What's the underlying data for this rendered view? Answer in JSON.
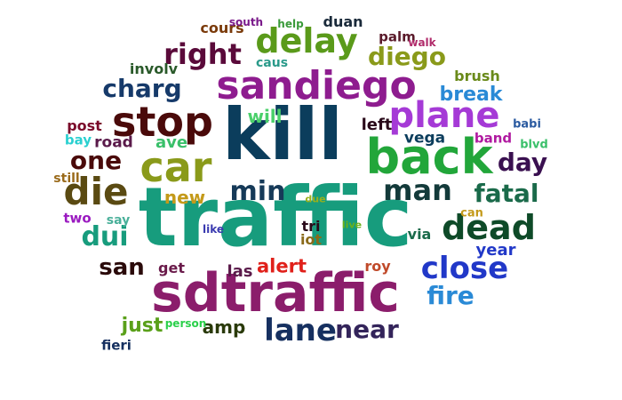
{
  "words": [
    {
      "text": "traffic",
      "color": "#179c7d"
    },
    {
      "text": "kill",
      "color": "#0b3d5c"
    },
    {
      "text": "sdtraffic",
      "color": "#8b1d6b"
    },
    {
      "text": "back",
      "color": "#22a63a"
    },
    {
      "text": "sandiego",
      "color": "#8e1c8f"
    },
    {
      "text": "stop",
      "color": "#4a0a0a"
    },
    {
      "text": "car",
      "color": "#8a9a1a"
    },
    {
      "text": "plane",
      "color": "#a53ad6"
    },
    {
      "text": "die",
      "color": "#5a4a12"
    },
    {
      "text": "delay",
      "color": "#5a9a1a"
    },
    {
      "text": "dead",
      "color": "#0e4a28"
    },
    {
      "text": "close",
      "color": "#2138c8"
    },
    {
      "text": "lane",
      "color": "#163060"
    },
    {
      "text": "man",
      "color": "#133a3a"
    },
    {
      "text": "right",
      "color": "#5a0a3a"
    },
    {
      "text": "min",
      "color": "#163a58"
    },
    {
      "text": "fatal",
      "color": "#1a6a4a"
    },
    {
      "text": "diego",
      "color": "#8a9a1a"
    },
    {
      "text": "one",
      "color": "#4a0a0a"
    },
    {
      "text": "day",
      "color": "#3a1050"
    },
    {
      "text": "near",
      "color": "#33245a"
    },
    {
      "text": "dui",
      "color": "#179c7d"
    },
    {
      "text": "fire",
      "color": "#2a8ad6"
    },
    {
      "text": "charg",
      "color": "#163a6a"
    },
    {
      "text": "san",
      "color": "#2a0a0a"
    },
    {
      "text": "break",
      "color": "#2a8ad6"
    },
    {
      "text": "alert",
      "color": "#e0201a"
    },
    {
      "text": "new",
      "color": "#c49a1a"
    },
    {
      "text": "just",
      "color": "#5aa01a"
    },
    {
      "text": "amp",
      "color": "#2a3a0a"
    },
    {
      "text": "year",
      "color": "#2138c8"
    },
    {
      "text": "will",
      "color": "#4ad06a"
    },
    {
      "text": "ave",
      "color": "#3ac06a"
    },
    {
      "text": "left",
      "color": "#2a0a1a"
    },
    {
      "text": "las",
      "color": "#5a1a4a"
    },
    {
      "text": "vega",
      "color": "#0b3d5c"
    },
    {
      "text": "road",
      "color": "#5a1a4a"
    },
    {
      "text": "involv",
      "color": "#2a5a2a"
    },
    {
      "text": "brush",
      "color": "#6a8a1a"
    },
    {
      "text": "cours",
      "color": "#7a3a0a"
    },
    {
      "text": "post",
      "color": "#7a0a2a"
    },
    {
      "text": "band",
      "color": "#b01aa0"
    },
    {
      "text": "via",
      "color": "#1a6a4a"
    },
    {
      "text": "get",
      "color": "#6a1a4a"
    },
    {
      "text": "roy",
      "color": "#c04a2a"
    },
    {
      "text": "tri",
      "color": "#2a0a1a"
    },
    {
      "text": "iot",
      "color": "#8a6a1a"
    },
    {
      "text": "palm",
      "color": "#5a1a2a"
    },
    {
      "text": "duan",
      "color": "#1a2a3a"
    },
    {
      "text": "caus",
      "color": "#2a9a8a"
    },
    {
      "text": "bay",
      "color": "#2ad0d0"
    },
    {
      "text": "say",
      "color": "#4ab09a"
    },
    {
      "text": "two",
      "color": "#9a1ac0"
    },
    {
      "text": "still",
      "color": "#9a6a1a"
    },
    {
      "text": "can",
      "color": "#c49a1a"
    },
    {
      "text": "babi",
      "color": "#2a5aa0"
    },
    {
      "text": "blvd",
      "color": "#3ac06a"
    },
    {
      "text": "fieri",
      "color": "#163060"
    },
    {
      "text": "south",
      "color": "#7a1a8a"
    },
    {
      "text": "help",
      "color": "#3a9a3a"
    },
    {
      "text": "walk",
      "color": "#b02a6a"
    },
    {
      "text": "like",
      "color": "#3a3ab0"
    },
    {
      "text": "live",
      "color": "#6ab01a"
    },
    {
      "text": "due",
      "color": "#9ab01a"
    },
    {
      "text": "person",
      "color": "#2ad04a"
    }
  ]
}
